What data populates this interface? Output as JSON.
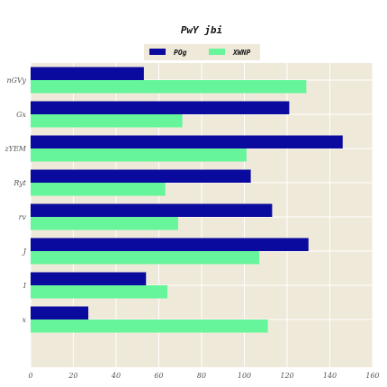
{
  "chart_data": {
    "type": "bar",
    "orientation": "horizontal",
    "title": "PwY jbi",
    "xlabel": "",
    "ylabel": "",
    "categories": [
      "nGVy",
      "Gx",
      "zYEM",
      "Ryt",
      "rv",
      "J",
      "I",
      "x"
    ],
    "series": [
      {
        "name": "POg",
        "values": [
          53,
          121,
          146,
          103,
          113,
          130,
          54,
          27
        ]
      },
      {
        "name": "XWNP",
        "values": [
          129,
          71,
          101,
          63,
          69,
          107,
          64,
          111
        ]
      }
    ],
    "xlim": [
      0,
      160
    ],
    "xticks": [
      "0",
      "20",
      "40",
      "60",
      "80",
      "100",
      "120",
      "140",
      "160"
    ],
    "grid": true,
    "legend_position": "top-center"
  },
  "colors": {
    "POg": "#0a0a9e",
    "XWNP": "#66f59a",
    "plot_background": "#efe9d9",
    "grid": "#ffffff"
  }
}
